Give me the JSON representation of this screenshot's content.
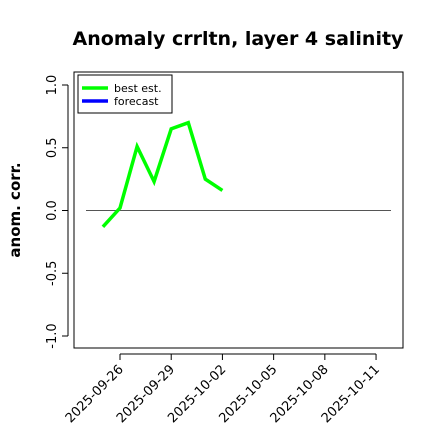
{
  "chart_data": {
    "type": "line",
    "title": "Anomaly crrltn, layer 4 salinity",
    "ylabel": "anom. corr.",
    "xlabel": "",
    "ylim": [
      -1.0,
      1.0
    ],
    "y_ticks": [
      "-1.0",
      "-0.5",
      "0.0",
      "0.5",
      "1.0"
    ],
    "x_ticks": [
      "2025-09-26",
      "2025-09-29",
      "2025-10-02",
      "2025-10-05",
      "2025-10-08",
      "2025-10-11"
    ],
    "highlighted_x_tick": "2025-10-02",
    "highlight_color": "#228B22",
    "reference_line": 0.0,
    "legend": {
      "placement": "top-left",
      "entries": [
        {
          "label": "best est.",
          "color": "#00ff00"
        },
        {
          "label": "forecast",
          "color": "#0000ff"
        }
      ]
    },
    "series": [
      {
        "name": "best est.",
        "color": "#00ff00",
        "x": [
          "2025-09-25",
          "2025-09-26",
          "2025-09-27",
          "2025-09-28",
          "2025-09-29",
          "2025-09-30",
          "2025-10-01",
          "2025-10-02"
        ],
        "values": [
          -0.13,
          0.02,
          0.51,
          0.23,
          0.65,
          0.7,
          0.25,
          0.16
        ]
      }
    ]
  }
}
